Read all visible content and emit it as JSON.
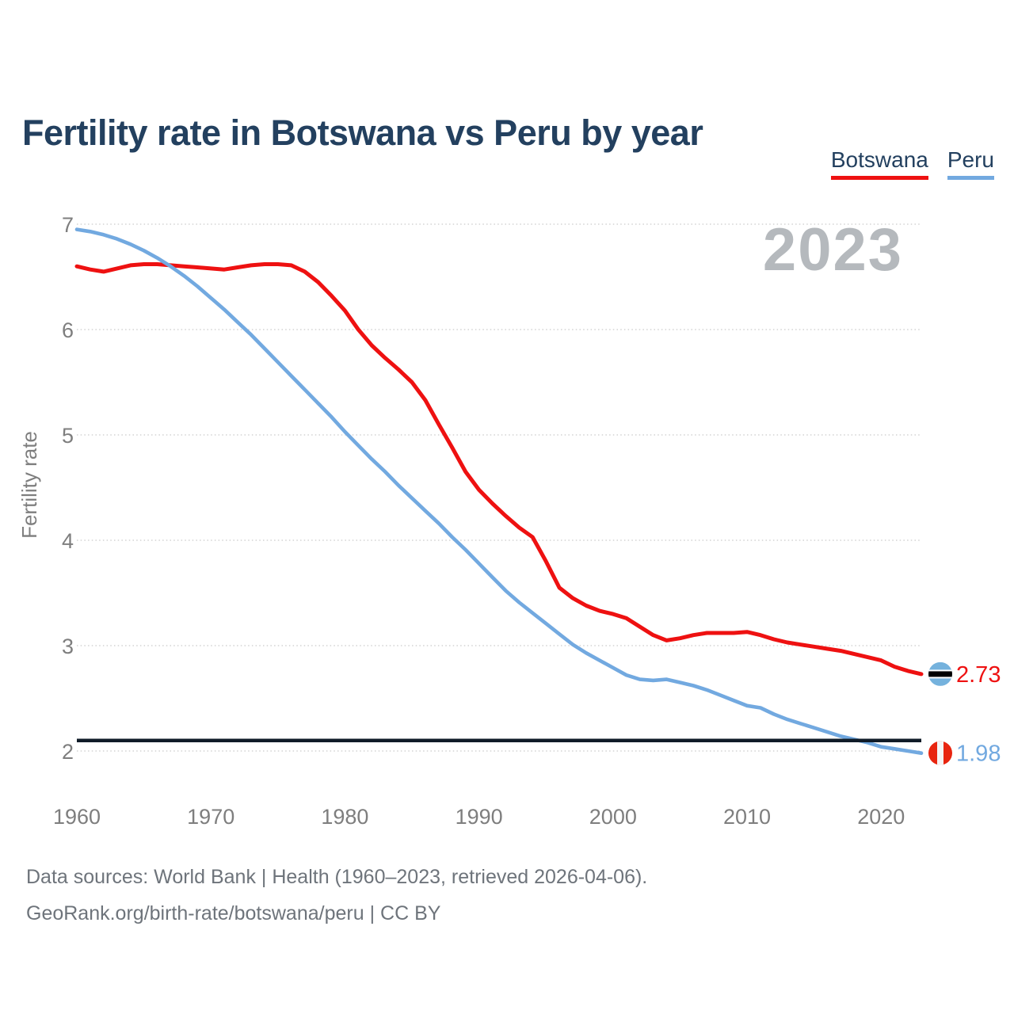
{
  "header": {
    "title": "Fertility rate in Botswana vs Peru by year"
  },
  "legend": [
    {
      "label": "Botswana",
      "color": "#ee1111"
    },
    {
      "label": "Peru",
      "color": "#72a9e0"
    }
  ],
  "watermark": "2023",
  "chart_data": {
    "type": "line",
    "title": "Fertility rate in Botswana vs Peru by year",
    "xlabel": "",
    "ylabel": "Fertility rate",
    "xlim": [
      1960,
      2023
    ],
    "ylim": [
      2,
      7
    ],
    "xticks": [
      1960,
      1970,
      1980,
      1990,
      2000,
      2010,
      2020
    ],
    "yticks": [
      2,
      3,
      4,
      5,
      6,
      7
    ],
    "grid": true,
    "legend_position": "top-right",
    "x": [
      1960,
      1961,
      1962,
      1963,
      1964,
      1965,
      1966,
      1967,
      1968,
      1969,
      1970,
      1971,
      1972,
      1973,
      1974,
      1975,
      1976,
      1977,
      1978,
      1979,
      1980,
      1981,
      1982,
      1983,
      1984,
      1985,
      1986,
      1987,
      1988,
      1989,
      1990,
      1991,
      1992,
      1993,
      1994,
      1995,
      1996,
      1997,
      1998,
      1999,
      2000,
      2001,
      2002,
      2003,
      2004,
      2005,
      2006,
      2007,
      2008,
      2009,
      2010,
      2011,
      2012,
      2013,
      2014,
      2015,
      2016,
      2017,
      2018,
      2019,
      2020,
      2021,
      2022,
      2023
    ],
    "series": [
      {
        "name": "Botswana",
        "color": "#ee1111",
        "line_width": 5,
        "end_label": "2.73",
        "flag": "botswana",
        "values": [
          6.6,
          6.57,
          6.55,
          6.58,
          6.61,
          6.62,
          6.62,
          6.61,
          6.6,
          6.59,
          6.58,
          6.57,
          6.59,
          6.61,
          6.62,
          6.62,
          6.61,
          6.55,
          6.45,
          6.32,
          6.18,
          6.0,
          5.85,
          5.73,
          5.62,
          5.5,
          5.33,
          5.1,
          4.88,
          4.65,
          4.48,
          4.35,
          4.23,
          4.12,
          4.03,
          3.8,
          3.55,
          3.45,
          3.38,
          3.33,
          3.3,
          3.26,
          3.18,
          3.1,
          3.05,
          3.07,
          3.1,
          3.12,
          3.12,
          3.12,
          3.13,
          3.1,
          3.06,
          3.03,
          3.01,
          2.99,
          2.97,
          2.95,
          2.92,
          2.89,
          2.86,
          2.8,
          2.76,
          2.73
        ]
      },
      {
        "name": "Peru",
        "color": "#72a9e0",
        "line_width": 4.6,
        "end_label": "1.98",
        "flag": "peru",
        "values": [
          6.95,
          6.93,
          6.9,
          6.86,
          6.81,
          6.75,
          6.68,
          6.6,
          6.51,
          6.41,
          6.3,
          6.19,
          6.07,
          5.95,
          5.82,
          5.69,
          5.56,
          5.43,
          5.3,
          5.17,
          5.03,
          4.9,
          4.77,
          4.65,
          4.52,
          4.4,
          4.28,
          4.16,
          4.03,
          3.91,
          3.78,
          3.65,
          3.52,
          3.41,
          3.31,
          3.21,
          3.11,
          3.01,
          2.93,
          2.86,
          2.79,
          2.72,
          2.68,
          2.67,
          2.68,
          2.65,
          2.62,
          2.58,
          2.53,
          2.48,
          2.43,
          2.41,
          2.35,
          2.3,
          2.26,
          2.22,
          2.18,
          2.14,
          2.11,
          2.08,
          2.04,
          2.02,
          2.0,
          1.98
        ]
      }
    ],
    "reference_line": {
      "value": 2.1,
      "color": "#101c28"
    },
    "flag_colors": {
      "botswana_blue": "#75b2dd",
      "botswana_black": "#000000",
      "botswana_white": "#ffffff",
      "peru_red": "#e8250f",
      "peru_white": "#f4f4f4"
    }
  },
  "footer": {
    "line1": "Data sources: World Bank | Health (1960–2023, retrieved 2026-04-06).",
    "line2": "GeoRank.org/birth-rate/botswana/peru | CC BY"
  }
}
